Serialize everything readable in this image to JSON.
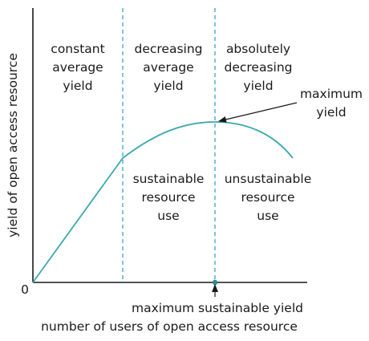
{
  "diagram": {
    "y_axis_label": "yield of open access resource",
    "x_axis_label": "number of users of open access resource",
    "origin_label": "0",
    "regions": [
      {
        "name": "constant-yield",
        "lines": [
          "constant",
          "average",
          "yield"
        ]
      },
      {
        "name": "decreasing-yield",
        "lines": [
          "decreasing",
          "average",
          "yield"
        ]
      },
      {
        "name": "absolutely-decreasing-yield",
        "lines": [
          "absolutely",
          "decreasing",
          "yield"
        ]
      }
    ],
    "use_labels": [
      {
        "name": "sustainable-use",
        "lines": [
          "sustainable",
          "resource",
          "use"
        ]
      },
      {
        "name": "unsustainable-use",
        "lines": [
          "unsustainable",
          "resource",
          "use"
        ]
      }
    ],
    "max_yield_label": [
      "maximum",
      "yield"
    ],
    "max_sustainable_label": "maximum sustainable yield",
    "colors": {
      "curve": "#3aa8ad",
      "dashed_line": "#2a9ec2",
      "axis": "#1a1a1a",
      "point": "#2a8c8c"
    }
  }
}
